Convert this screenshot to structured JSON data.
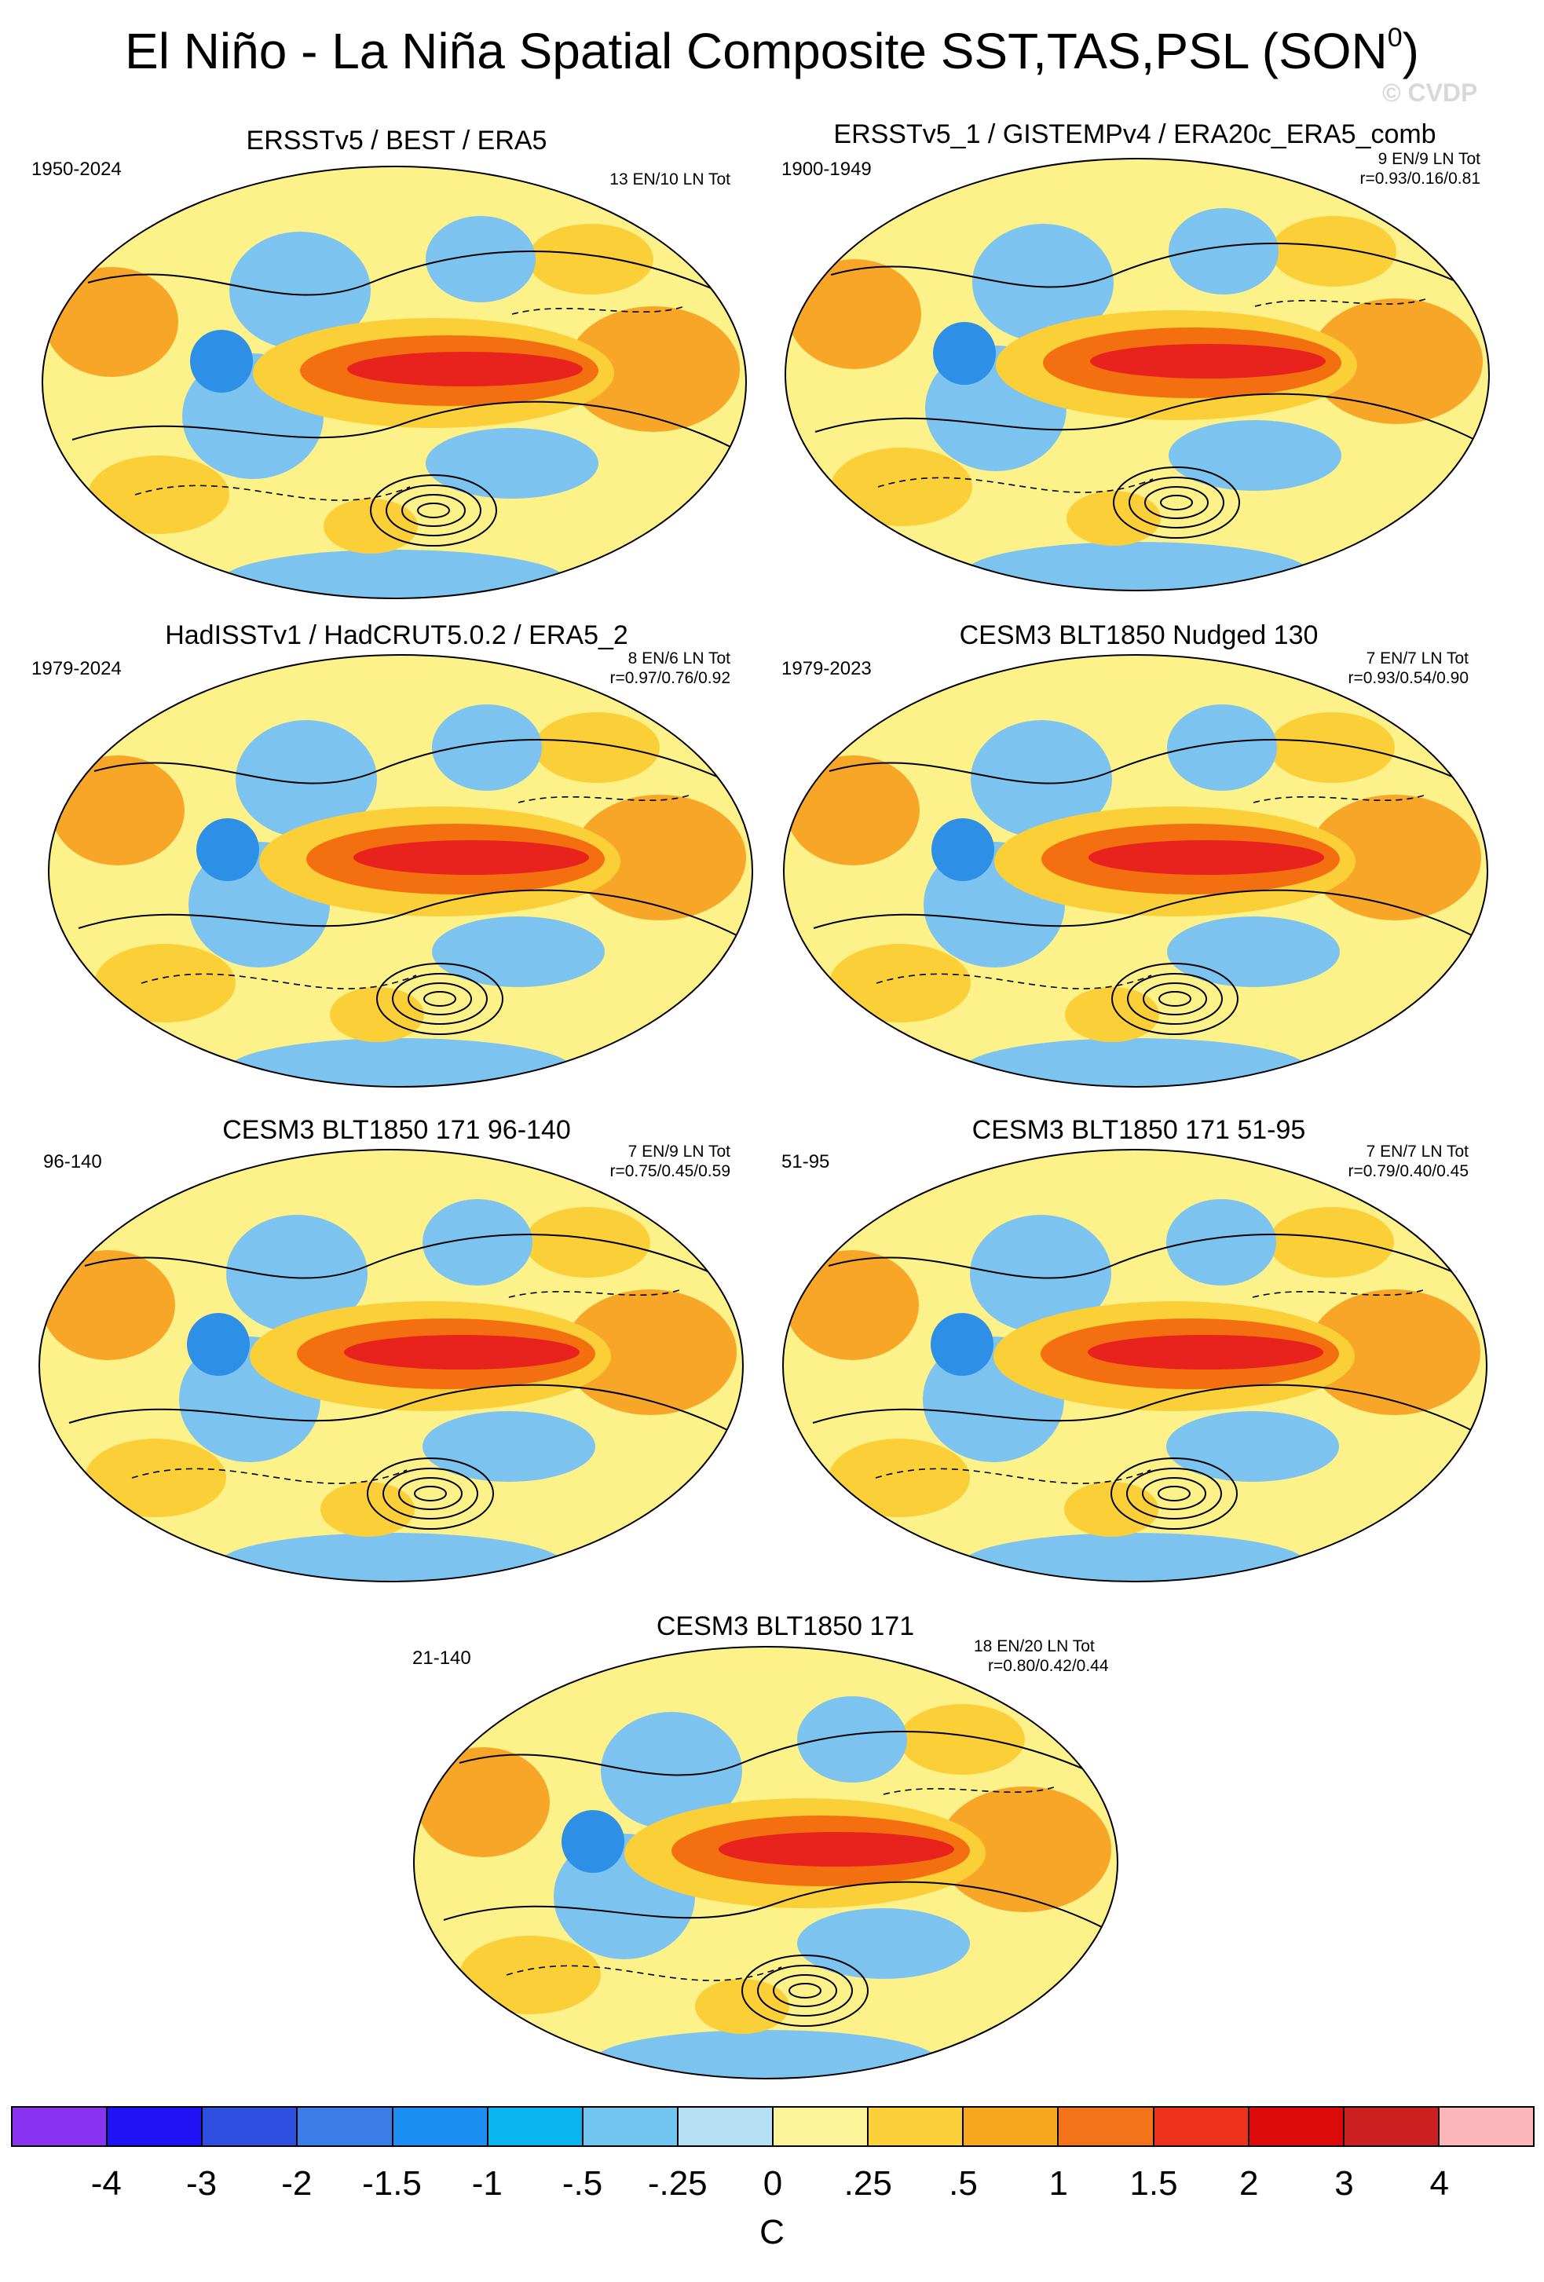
{
  "title": "El Niño - La Niña Spatial Composite SST,TAS,PSL (SON",
  "title_superscript": "0",
  "title_close": ")",
  "watermark": "© CVDP",
  "colors": {
    "land_warm": "#f7a628",
    "sea_bg": "#fdf18a",
    "cool": "#7dc3ef",
    "cool_dark": "#2d8fe6",
    "warm_core": "#e8221c",
    "warm_band": "#f46f10",
    "contour": "#000000"
  },
  "panels": [
    {
      "title": "ERSSTv5 / BEST / ERA5",
      "period": "1950-2024",
      "stats_line1": "13 EN/10 LN Tot",
      "stats_line2": ""
    },
    {
      "title": "ERSSTv5_1 / GISTEMPv4 / ERA20c_ERA5_comb",
      "period": "1900-1949",
      "stats_line1": "9 EN/9 LN Tot",
      "stats_line2": "r=0.93/0.16/0.81"
    },
    {
      "title": "HadISSTv1 / HadCRUT5.0.2 / ERA5_2",
      "period": "1979-2024",
      "stats_line1": "8 EN/6 LN Tot",
      "stats_line2": "r=0.97/0.76/0.92"
    },
    {
      "title": "CESM3 BLT1850 Nudged 130",
      "period": "1979-2023",
      "stats_line1": "7 EN/7 LN Tot",
      "stats_line2": "r=0.93/0.54/0.90"
    },
    {
      "title": "CESM3 BLT1850 171 96-140",
      "period": "96-140",
      "stats_line1": "7 EN/9 LN Tot",
      "stats_line2": "r=0.75/0.45/0.59"
    },
    {
      "title": "CESM3 BLT1850 171 51-95",
      "period": "51-95",
      "stats_line1": "7 EN/7 LN Tot",
      "stats_line2": "r=0.79/0.40/0.45"
    },
    {
      "title": "CESM3 BLT1850 171",
      "period": "21-140",
      "stats_line1": "18 EN/20 LN Tot",
      "stats_line2": "r=0.80/0.42/0.44"
    }
  ],
  "colorbar": {
    "unit": "C",
    "ticks": [
      "-4",
      "-3",
      "-2",
      "-1.5",
      "-1",
      "-.5",
      "-.25",
      "0",
      ".25",
      ".5",
      "1",
      "1.5",
      "2",
      "3",
      "4"
    ],
    "colors": [
      "#8a33f0",
      "#1f12f5",
      "#2e4fe0",
      "#3a7de6",
      "#1d8ff2",
      "#0ab4ee",
      "#72c5f0",
      "#b5dff2",
      "#fdf49a",
      "#fbcf38",
      "#f6a91e",
      "#f2731a",
      "#ec321a",
      "#dc0a0a",
      "#cc2020",
      "#fbb6b9"
    ]
  }
}
